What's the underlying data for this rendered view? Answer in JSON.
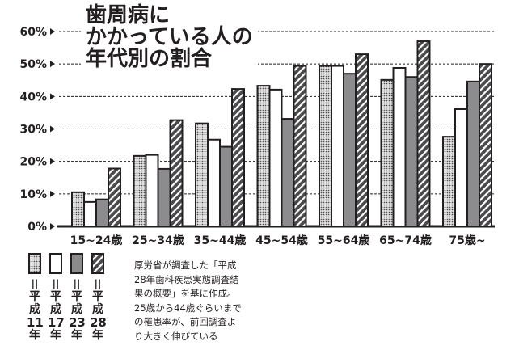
{
  "title_lines": [
    "歯周病に",
    "かかっている人の",
    "年代別の割合"
  ],
  "chart_data": {
    "type": "bar",
    "title": "歯周病にかかっている人の年代別の割合",
    "categories": [
      "15~24歳",
      "25~34歳",
      "35~44歳",
      "45~54歳",
      "55~64歳",
      "65~74歳",
      "75歳~"
    ],
    "series": [
      {
        "name": "平成11年",
        "pattern": "dotted",
        "values": [
          10.5,
          21.7,
          31.7,
          43.3,
          49.4,
          45.1,
          27.6
        ]
      },
      {
        "name": "平成17年",
        "pattern": "white",
        "values": [
          7.5,
          22.0,
          26.7,
          42.1,
          49.4,
          48.8,
          36.1
        ]
      },
      {
        "name": "平成23年",
        "pattern": "gray",
        "values": [
          8.3,
          17.7,
          24.5,
          33.1,
          47.0,
          46.0,
          44.6
        ]
      },
      {
        "name": "平成28年",
        "pattern": "hatched",
        "values": [
          17.8,
          32.7,
          42.3,
          49.4,
          53.0,
          57.0,
          50.0
        ]
      }
    ],
    "yticks": [
      "0%",
      "10%",
      "20%",
      "30%",
      "40%",
      "50%",
      "60%"
    ],
    "ylim": [
      0,
      60
    ],
    "grid": true,
    "legend_placement": "bottom-left",
    "colors": {
      "gray": "#8c8c8e",
      "dark": "#231f20",
      "hatch": "#4a4a4c"
    }
  },
  "legend": [
    {
      "eq": "||",
      "l1": "平",
      "l2": "成",
      "num": "11",
      "l3": "年"
    },
    {
      "eq": "||",
      "l1": "平",
      "l2": "成",
      "num": "17",
      "l3": "年"
    },
    {
      "eq": "||",
      "l1": "平",
      "l2": "成",
      "num": "23",
      "l3": "年"
    },
    {
      "eq": "||",
      "l1": "平",
      "l2": "成",
      "num": "28",
      "l3": "年"
    }
  ],
  "note_lines": [
    "厚労省が調査した「平成",
    "28年歯科疾患実態調査結",
    "果の概要」を基に作成。",
    "25歳から44歳ぐらいまで",
    "の罹患率が、前回調査よ",
    "り大きく伸びている"
  ]
}
